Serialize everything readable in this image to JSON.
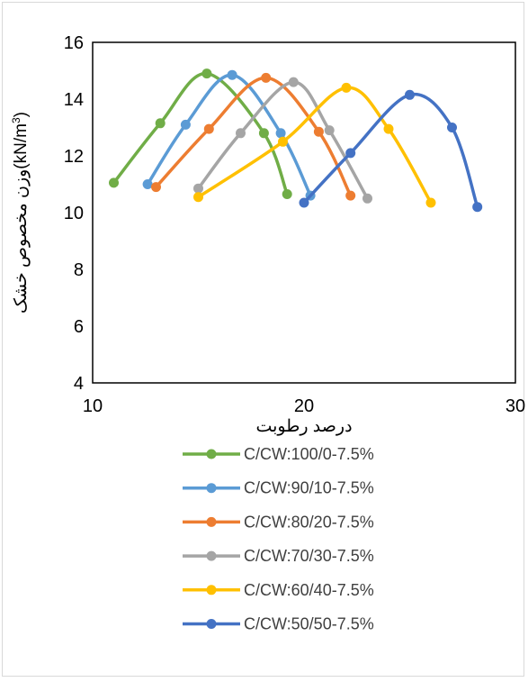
{
  "chart_data": {
    "type": "line",
    "title": "",
    "xlabel": "درصد رطوبت",
    "ylabel": "وزن مخصوص خشک",
    "ylabel_unit_prefix": "(kN/m",
    "ylabel_unit_sup": "3",
    "ylabel_unit_suffix": ")",
    "xlim": [
      10,
      30
    ],
    "ylim": [
      4,
      16
    ],
    "x_ticks": [
      10,
      20,
      30
    ],
    "y_ticks": [
      4,
      6,
      8,
      10,
      12,
      14,
      16
    ],
    "grid": false,
    "legend_position": "bottom",
    "series": [
      {
        "name": "C/CW:100/0-7.5%",
        "color": "#70ad47",
        "x": [
          11.0,
          13.2,
          15.4,
          18.1,
          19.2
        ],
        "y": [
          11.05,
          13.15,
          14.9,
          12.8,
          10.65
        ]
      },
      {
        "name": "C/CW:90/10-7.5%",
        "color": "#5b9bd5",
        "x": [
          12.6,
          14.4,
          16.6,
          18.9,
          20.3
        ],
        "y": [
          11.0,
          13.1,
          14.85,
          12.8,
          10.6
        ]
      },
      {
        "name": "C/CW:80/20-7.5%",
        "color": "#ed7d31",
        "x": [
          13.0,
          15.5,
          18.2,
          20.7,
          22.2
        ],
        "y": [
          10.9,
          12.95,
          14.75,
          12.85,
          10.6
        ]
      },
      {
        "name": "C/CW:70/30-7.5%",
        "color": "#a5a5a5",
        "x": [
          15.0,
          17.0,
          19.5,
          21.2,
          23.0
        ],
        "y": [
          10.85,
          12.8,
          14.6,
          12.9,
          10.5
        ]
      },
      {
        "name": "C/CW:60/40-7.5%",
        "color": "#ffc000",
        "x": [
          15.0,
          19.0,
          22.0,
          24.0,
          26.0
        ],
        "y": [
          10.55,
          12.5,
          14.4,
          12.95,
          10.35
        ]
      },
      {
        "name": "C/CW:50/50-7.5%",
        "color": "#4472c4",
        "x": [
          20.0,
          22.2,
          25.0,
          27.0,
          28.2
        ],
        "y": [
          10.35,
          12.1,
          14.15,
          13.0,
          10.2
        ]
      }
    ]
  }
}
